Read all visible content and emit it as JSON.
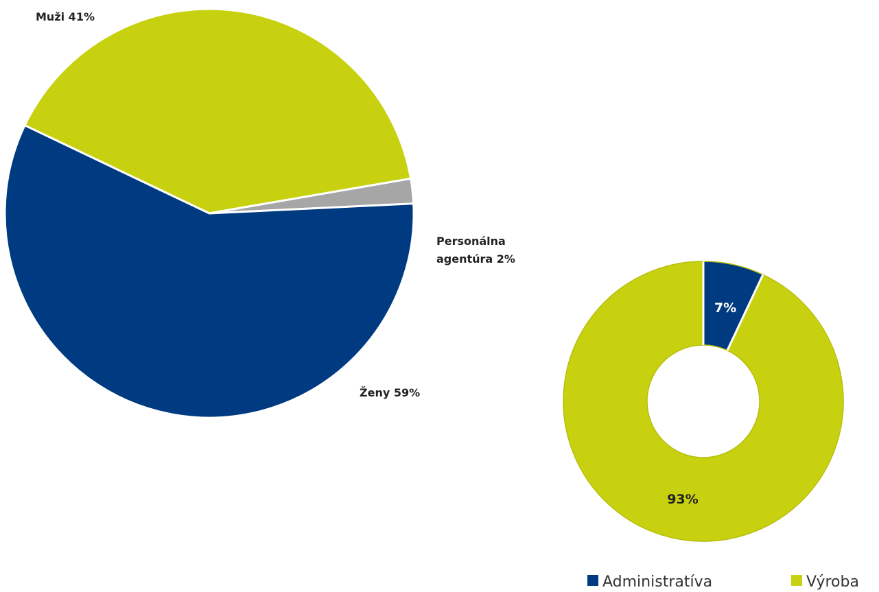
{
  "chart_data": [
    {
      "type": "pie",
      "slices": [
        {
          "label": "Muži 41%",
          "value": 41,
          "color": "#c8d10f"
        },
        {
          "label": "Personálna agentúra 2%",
          "label_lines": [
            "Personálna",
            "agentúra 2%"
          ],
          "value": 2,
          "color": "#a6a6a6"
        },
        {
          "label": "Ženy 59%",
          "value": 59,
          "color": "#003a80"
        }
      ]
    },
    {
      "type": "pie",
      "variant": "donut",
      "slices": [
        {
          "name": "Administratíva",
          "value": 7,
          "label": "7%",
          "color": "#003a80",
          "label_color": "#ffffff"
        },
        {
          "name": "Výroba",
          "value": 93,
          "label": "93%",
          "color": "#c8d10f",
          "label_color": "#222222"
        }
      ],
      "legend": {
        "placement": "bottom-right",
        "entries": [
          "Administratíva",
          "Výroba"
        ]
      }
    }
  ]
}
